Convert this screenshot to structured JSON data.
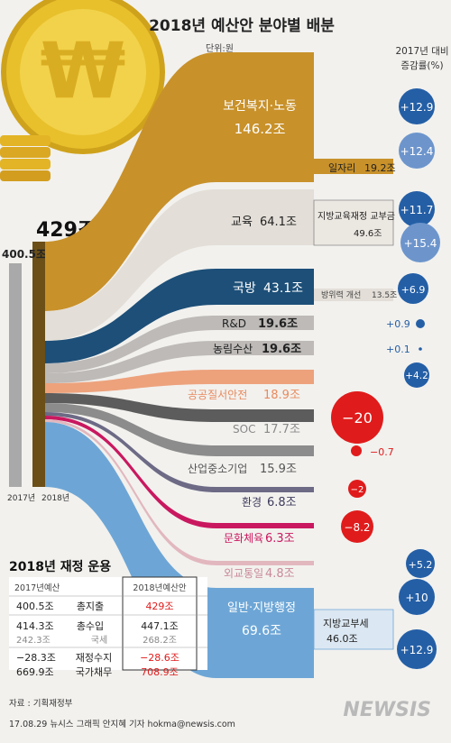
{
  "header": {
    "title": "2018년 예산안 분야별 배분",
    "unit": "단위:원",
    "change_label_1": "2017년 대비",
    "change_label_2": "증감률(%)"
  },
  "totals": {
    "y2017": "400.5조",
    "y2018": "429조",
    "year2017": "2017년",
    "year2018": "2018년"
  },
  "colors": {
    "health": "#c8912a",
    "edu": "#e3ded7",
    "defense": "#1d4f78",
    "rnd": "#bdbab8",
    "agri": "#bdbab8",
    "safety": "#eda27c",
    "soc": "#5c5c5c",
    "industry": "#8c8c8c",
    "env": "#6c6a85",
    "culture": "#c9185f",
    "diplomacy": "#e2b7be",
    "general": "#6da6d6",
    "blue": "#245fa6",
    "red": "#e01b1b"
  },
  "chart_data": {
    "type": "sankey",
    "title": "2018년 예산안 분야별 배분",
    "unit": "단위:원",
    "source": "2018년 429조",
    "sectors": [
      {
        "name": "보건복지·노동",
        "amount": "146.2조",
        "change": "+12.9",
        "sub": {
          "name": "일자리",
          "amount": "19.2조",
          "change": "+12.4"
        }
      },
      {
        "name": "교육",
        "amount": "64.1조",
        "change": "+11.7",
        "sub": {
          "name": "지방교육재정 교부금",
          "amount": "49.6조",
          "change": "+15.4"
        }
      },
      {
        "name": "국방",
        "amount": "43.1조",
        "change": "+6.9",
        "sub": {
          "name": "방위력 개선",
          "amount": "13.5조"
        }
      },
      {
        "name": "R&D",
        "amount": "19.6조",
        "change": "+0.9"
      },
      {
        "name": "농림수산",
        "amount": "19.6조",
        "change": "+0.1"
      },
      {
        "name": "공공질서안전",
        "amount": "18.9조",
        "change": "+4.2"
      },
      {
        "name": "SOC",
        "amount": "17.7조",
        "change": "−20"
      },
      {
        "name": "산업중소기업",
        "amount": "15.9조",
        "change": "−0.7"
      },
      {
        "name": "환경",
        "amount": "6.8조",
        "change": "−2"
      },
      {
        "name": "문화체육",
        "amount": "6.3조",
        "change": "−8.2"
      },
      {
        "name": "외교통일",
        "amount": "4.8조",
        "change": "+5.2"
      },
      {
        "name": "일반·지방행정",
        "amount": "69.6조",
        "change": "+10",
        "sub": {
          "name": "지방교부세",
          "amount": "46.0조",
          "change": "+12.9"
        }
      }
    ]
  },
  "table": {
    "title": "2018년 재정 운용",
    "col_2017": "2017년예산",
    "col_2018": "2018년예산안",
    "rows": [
      {
        "v2017": "400.5조",
        "label": "총지출",
        "v2018": "429조"
      },
      {
        "v2017": "414.3조",
        "label": "총수입",
        "v2018": "447.1조"
      },
      {
        "v2017": "242.3조",
        "label": "국세",
        "v2018": "268.2조"
      },
      {
        "v2017": "−28.3조",
        "label": "재정수지",
        "v2018": "−28.6조"
      },
      {
        "v2017": "669.9조",
        "label": "국가채무",
        "v2018": "708.9조"
      }
    ]
  },
  "footer": {
    "source": "자료 : 기획재정부",
    "credit": "17.08.29 뉴시스 그래픽 안지혜 기자 hokma@newsis.com",
    "logo": "NEWSIS"
  }
}
